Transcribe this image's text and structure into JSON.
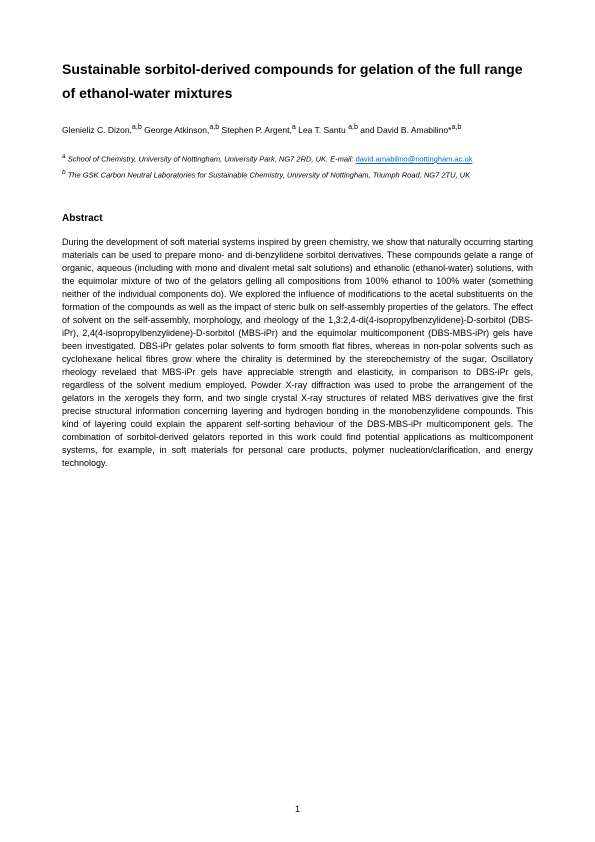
{
  "title": "Sustainable sorbitol-derived compounds for gelation of the full range of ethanol-water mixtures",
  "authors_html": "Glenieliz C. Dizon,<sup>a,b</sup> George Atkinson,<sup>a,b</sup> Stephen P. Argent,<sup>a</sup> Lea T. Santu <sup>a,b</sup> and David B. Amabilino*<sup>a,b</sup>",
  "affiliations": {
    "a_prefix": "a",
    "a_text": "School of Chemistry, University of Nottingham, University Park, NG7 2RD, UK. E-mail: ",
    "email": "david.amabilino@nottingham.ac.uk",
    "b_prefix": "b",
    "b_text": "The GSK Carbon Neutral Laboratories for Sustainable Chemistry, University of Nottingham, Triumph Road, NG7 2TU, UK"
  },
  "abstract_heading": "Abstract",
  "abstract_body": "During the development of soft material systems inspired by green chemistry, we show that naturally occurring starting materials can be used to prepare  mono- and di-benzylidene sorbitol derivatives. These compounds gelate a range of organic, aqueous (including with mono and divalent metal salt solutions) and ethanolic (ethanol-water) solutions, with the equimolar mixture of two of the gelators gelling all compositions from 100% ethanol to 100% water (something neither of the individual components do). We explored the influence of modifications to the acetal substituents on the formation of the compounds as well as the impact of steric bulk on self-assembly properties of the gelators. The effect of solvent on the self-assembly, morphology, and rheology of the 1,3:2,4-di(4-isopropylbenzylidene)-D-sorbitol (DBS-iPr), 2,4(4-isopropylbenzylidene)-D-sorbitol (MBS-iPr) and the equimolar multicomponent (DBS-MBS-iPr) gels have been investigated. DBS-iPr gelates polar solvents to form smooth flat fibres, whereas in non-polar solvents such as cyclohexane helical fibres grow where the chirality is determined by the stereochemistry of the sugar. Oscillatory rheology revelaed that MBS-iPr gels have appreciable strength and elasticity, in comparison to DBS-iPr gels, regardless of the solvent medium employed. Powder X-ray diffraction was used to probe the arrangement of the gelators in the xerogels they form, and two single crystal X-ray structures of related MBS derivatives give the first precise structural information concerning layering and hydrogen bonding in the monobenzylidene compounds. This kind of layering could explain the apparent self-sorting behaviour of the DBS-MBS-iPr multicomponent gels. The combination of sorbitol-derived gelators reported in this work could find potential applications as multicomponent systems, for example, in soft materials for personal care products, polymer nucleation/clarification, and energy technology.",
  "page_number": "1"
}
